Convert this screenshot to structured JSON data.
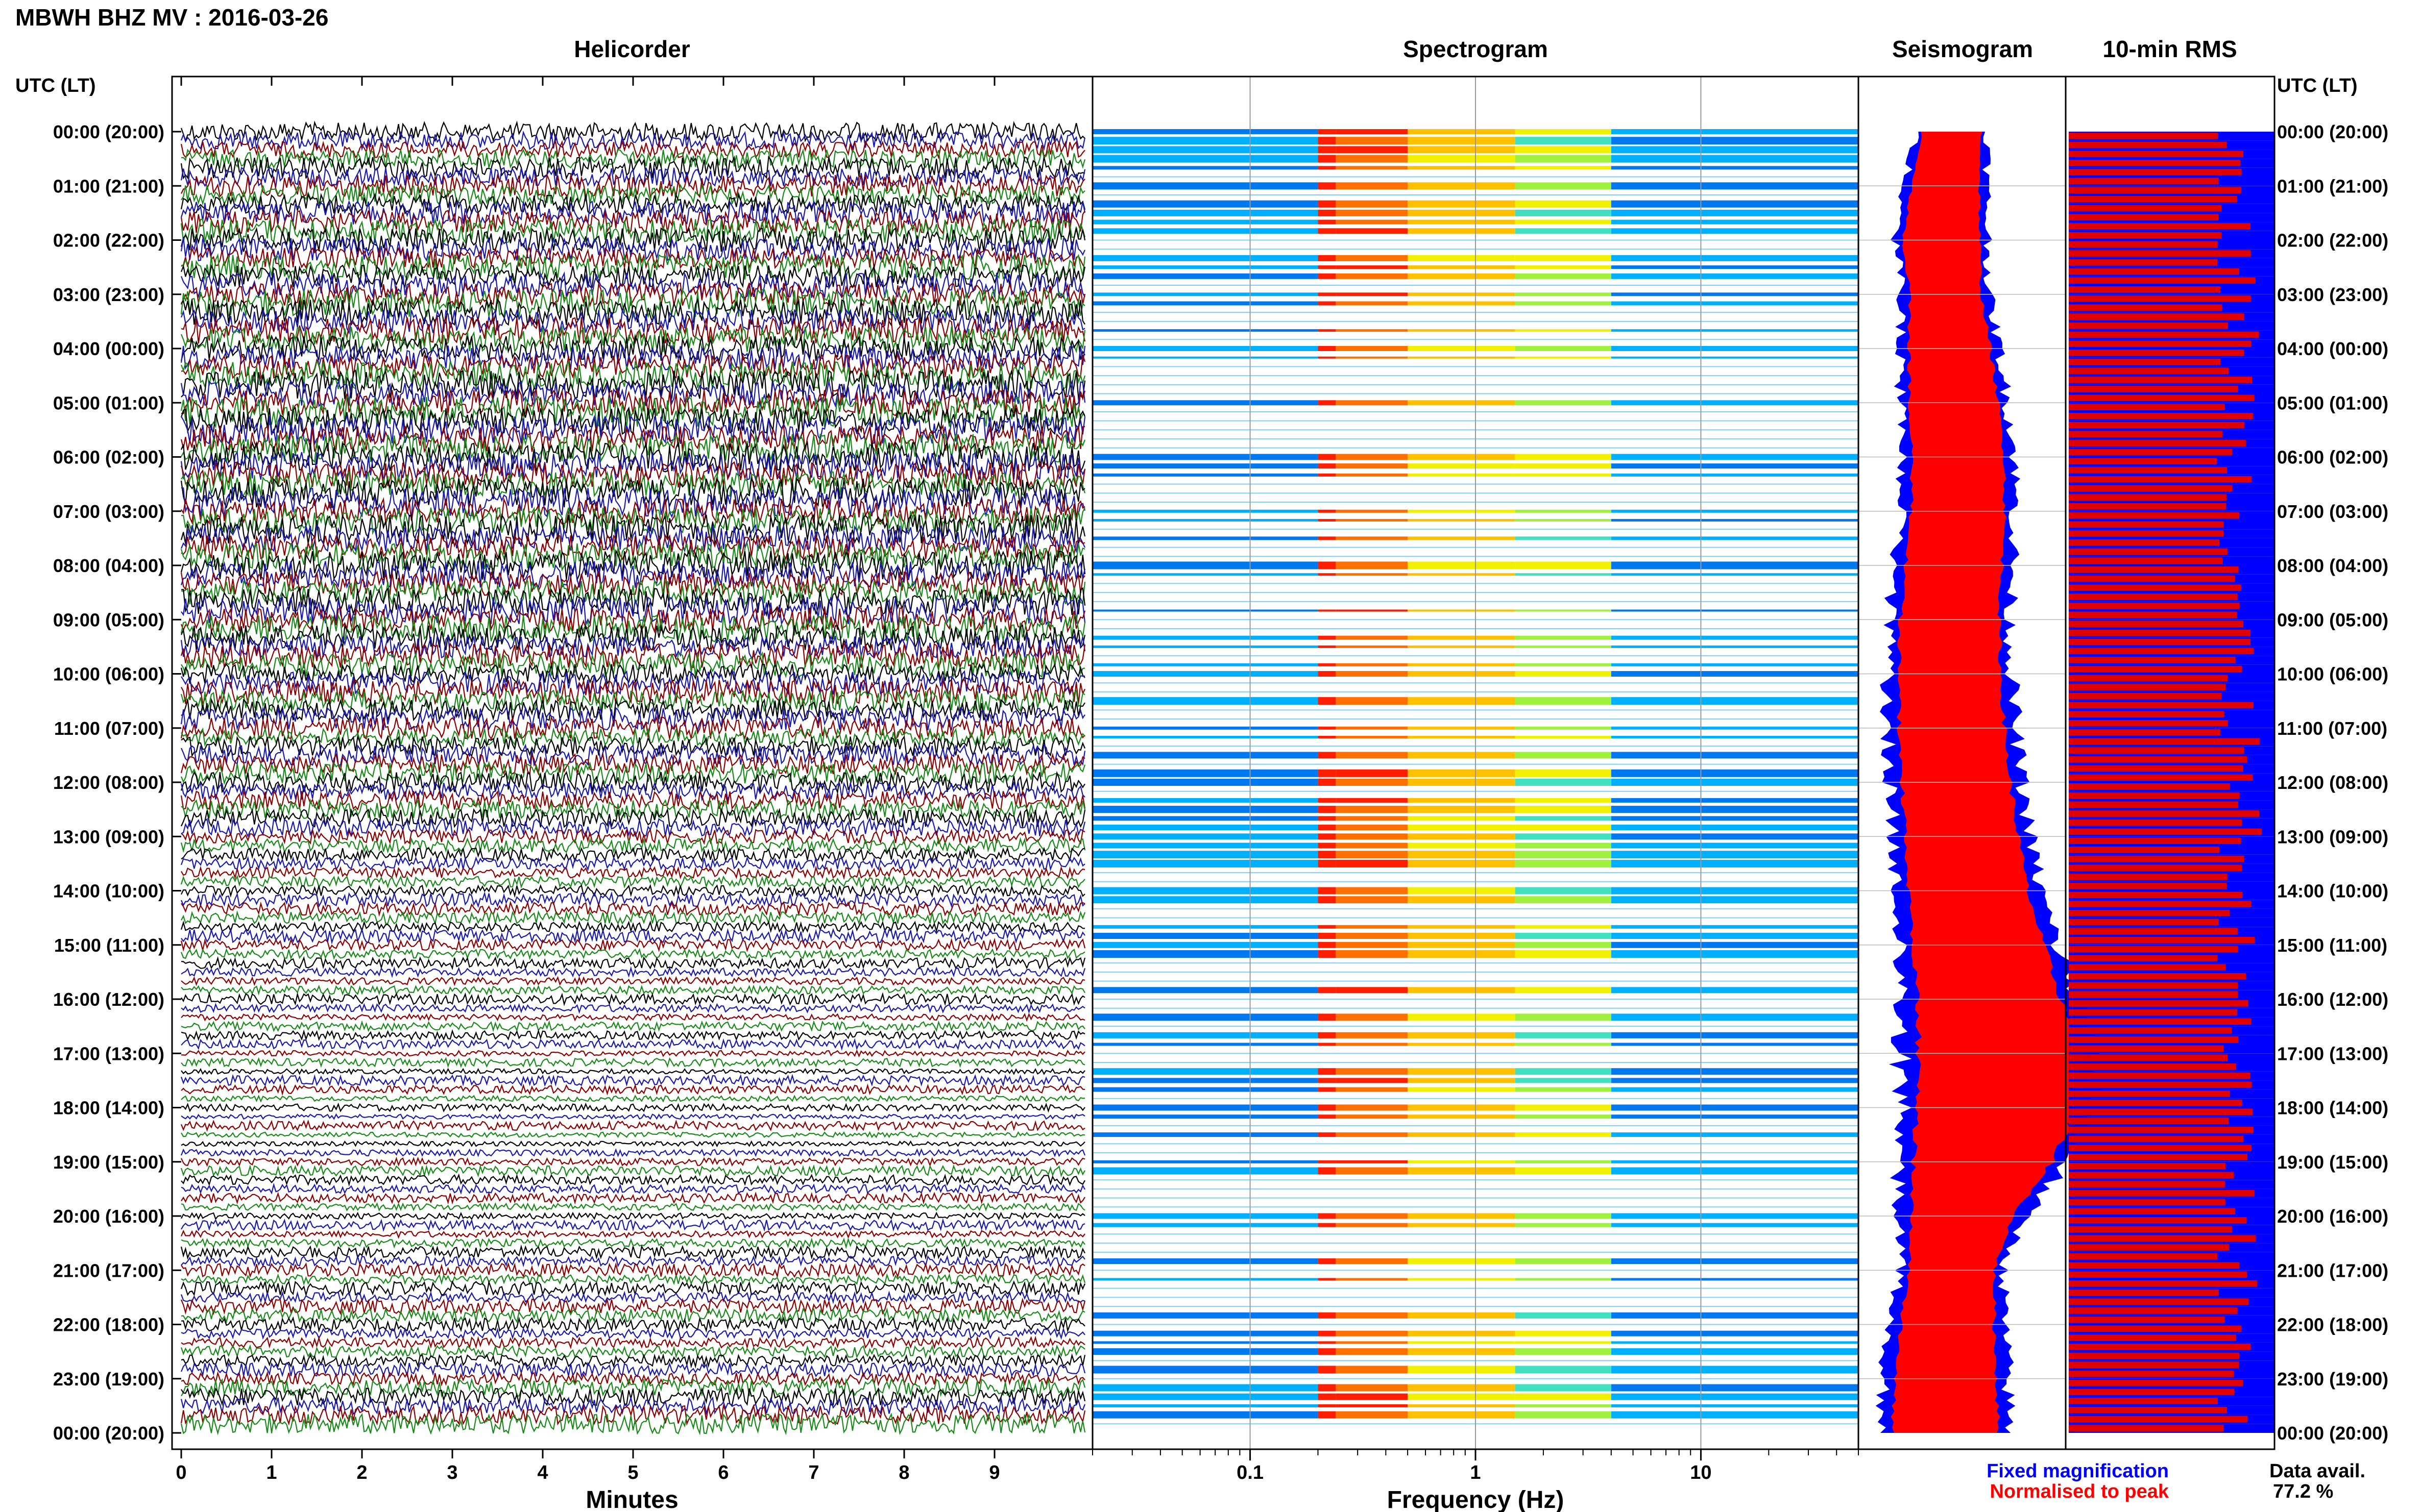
{
  "header": {
    "station_title": "MBWH BHZ MV : 2016-03-26"
  },
  "axis_labels": {
    "time_left": "UTC (LT)",
    "time_right": "UTC (LT)"
  },
  "panels": {
    "helicorder": "Helicorder",
    "spectrogram": "Spectrogram",
    "seismogram": "Seismogram",
    "rms": "10-min RMS"
  },
  "chart_data": {
    "type": "heatmap",
    "time_ticks": [
      "00:00 (20:00)",
      "01:00 (21:00)",
      "02:00 (22:00)",
      "03:00 (23:00)",
      "04:00 (00:00)",
      "05:00 (01:00)",
      "06:00 (02:00)",
      "07:00 (03:00)",
      "08:00 (04:00)",
      "09:00 (05:00)",
      "10:00 (06:00)",
      "11:00 (07:00)",
      "12:00 (08:00)",
      "13:00 (09:00)",
      "14:00 (10:00)",
      "15:00 (11:00)",
      "16:00 (12:00)",
      "17:00 (13:00)",
      "18:00 (14:00)",
      "19:00 (15:00)",
      "20:00 (16:00)",
      "21:00 (17:00)",
      "22:00 (18:00)",
      "23:00 (19:00)",
      "00:00 (20:00)"
    ],
    "helicorder": {
      "xlabel": "Minutes",
      "x_ticks": [
        "0",
        "1",
        "2",
        "3",
        "4",
        "5",
        "6",
        "7",
        "8",
        "9"
      ],
      "xlim": [
        0,
        10
      ],
      "trace_colors": [
        "#000000",
        "#1a1ab0",
        "#8b0000",
        "#1a8a1a"
      ]
    },
    "spectrogram": {
      "xlabel": "Frequency (Hz)",
      "x_ticks": [
        "0.1",
        "1",
        "10"
      ],
      "x_scale": "log",
      "xlim": [
        0.02,
        50
      ]
    },
    "seismogram": {
      "series": [
        {
          "name": "Fixed magnification",
          "color": "#0000ff"
        },
        {
          "name": "Normalised to peak",
          "color": "#ff0000"
        }
      ],
      "width_profile": [
        [
          0,
          0.35
        ],
        [
          1,
          0.4
        ],
        [
          2,
          0.45
        ],
        [
          3,
          0.42
        ],
        [
          4,
          0.48
        ],
        [
          5,
          0.52
        ],
        [
          6,
          0.55
        ],
        [
          7,
          0.55
        ],
        [
          8,
          0.57
        ],
        [
          9,
          0.58
        ],
        [
          10,
          0.6
        ],
        [
          11,
          0.62
        ],
        [
          12,
          0.64
        ],
        [
          13,
          0.66
        ],
        [
          14,
          0.7
        ],
        [
          15,
          0.76
        ],
        [
          16,
          0.85
        ],
        [
          17,
          0.95
        ],
        [
          18,
          0.93
        ],
        [
          19,
          0.82
        ],
        [
          20,
          0.6
        ],
        [
          21,
          0.5
        ],
        [
          22,
          0.55
        ],
        [
          23,
          0.6
        ],
        [
          24,
          0.62
        ]
      ],
      "center_profile": [
        [
          0,
          0.45
        ],
        [
          1,
          0.42
        ],
        [
          2,
          0.4
        ],
        [
          3,
          0.42
        ],
        [
          4,
          0.44
        ],
        [
          5,
          0.46
        ],
        [
          6,
          0.48
        ],
        [
          7,
          0.48
        ],
        [
          8,
          0.46
        ],
        [
          9,
          0.44
        ],
        [
          10,
          0.44
        ],
        [
          11,
          0.45
        ],
        [
          12,
          0.47
        ],
        [
          13,
          0.5
        ],
        [
          14,
          0.53
        ],
        [
          15,
          0.58
        ],
        [
          16,
          0.63
        ],
        [
          17,
          0.68
        ],
        [
          18,
          0.67
        ],
        [
          19,
          0.6
        ],
        [
          20,
          0.5
        ],
        [
          21,
          0.45
        ],
        [
          22,
          0.43
        ],
        [
          23,
          0.42
        ],
        [
          24,
          0.42
        ]
      ]
    },
    "rms": {
      "xlim": [
        0,
        1
      ],
      "series": [
        {
          "name": "Fixed magnification",
          "color": "#0000ff"
        },
        {
          "name": "Normalised to peak",
          "color": "#ff0000"
        }
      ]
    },
    "data_availability": {
      "label": "Data avail.",
      "value": "77.2 %"
    }
  },
  "colors": {
    "spectrogram_low_blue": "#00a0ff",
    "spectrogram_mid_yellow": "#f0f000",
    "spectrogram_high_red": "#ff1e00",
    "rms_blue": "#0000ff",
    "rms_red": "#e00000"
  }
}
